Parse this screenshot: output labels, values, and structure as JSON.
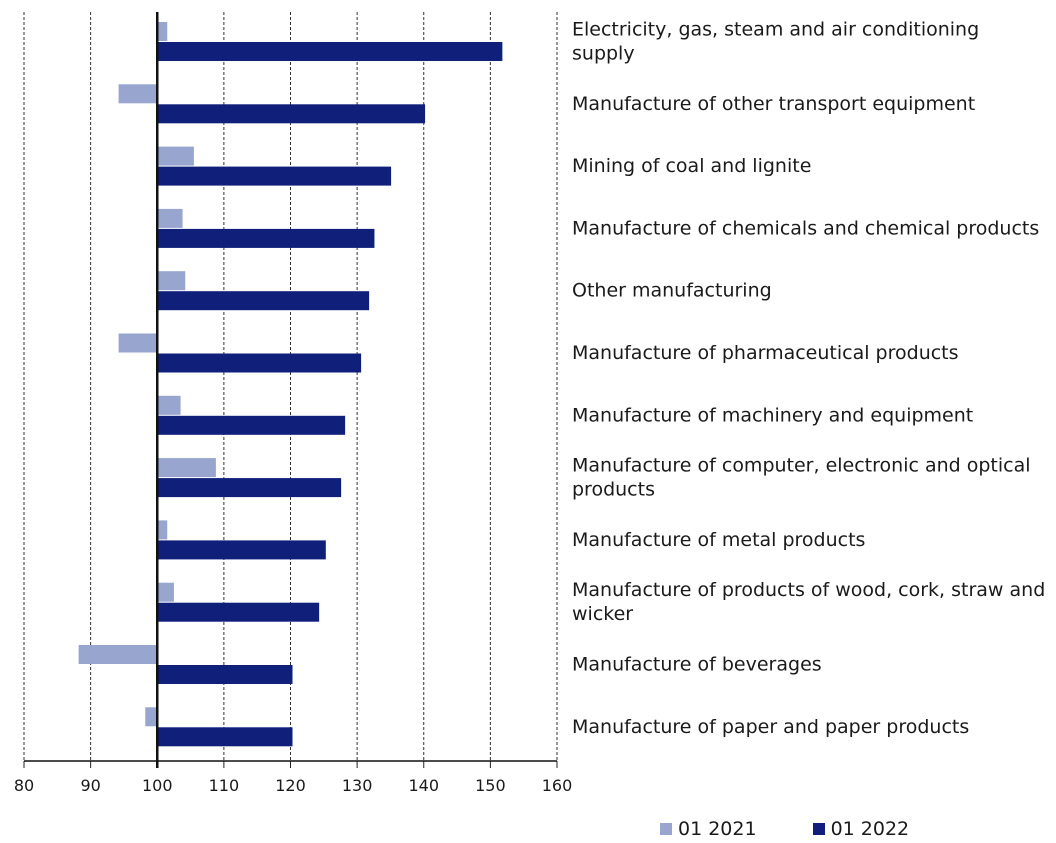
{
  "chart_data": {
    "type": "bar",
    "orientation": "horizontal",
    "title": "",
    "xlabel": "",
    "ylabel": "",
    "xlim": [
      80,
      160
    ],
    "xticks": [
      80,
      90,
      100,
      110,
      120,
      130,
      140,
      150,
      160
    ],
    "baseline": 100,
    "grid": true,
    "legend_position": "bottom-right",
    "categories": [
      "Electricity, gas, steam and air conditioning supply",
      "Manufacture of other transport equipment",
      "Mining of coal and lignite",
      "Manufacture of chemicals and chemical products",
      "Other manufacturing",
      "Manufacture of pharmaceutical products",
      "Manufacture of machinery and equipment",
      "Manufacture of computer, electronic and optical products",
      "Manufacture of metal products",
      "Manufacture of products of wood, cork, straw and wicker",
      "Manufacture of beverages",
      "Manufacture of paper and paper products"
    ],
    "series": [
      {
        "name": "01 2021",
        "color": "#97a5cf",
        "values": [
          101.5,
          94.2,
          105.5,
          103.8,
          104.2,
          94.2,
          103.5,
          108.8,
          101.5,
          102.5,
          88.2,
          98.2
        ]
      },
      {
        "name": "01 2022",
        "color": "#0f1f7a",
        "values": [
          151.8,
          140.2,
          135.1,
          132.6,
          131.8,
          130.6,
          128.2,
          127.6,
          125.3,
          124.3,
          120.3,
          120.3
        ]
      }
    ]
  }
}
